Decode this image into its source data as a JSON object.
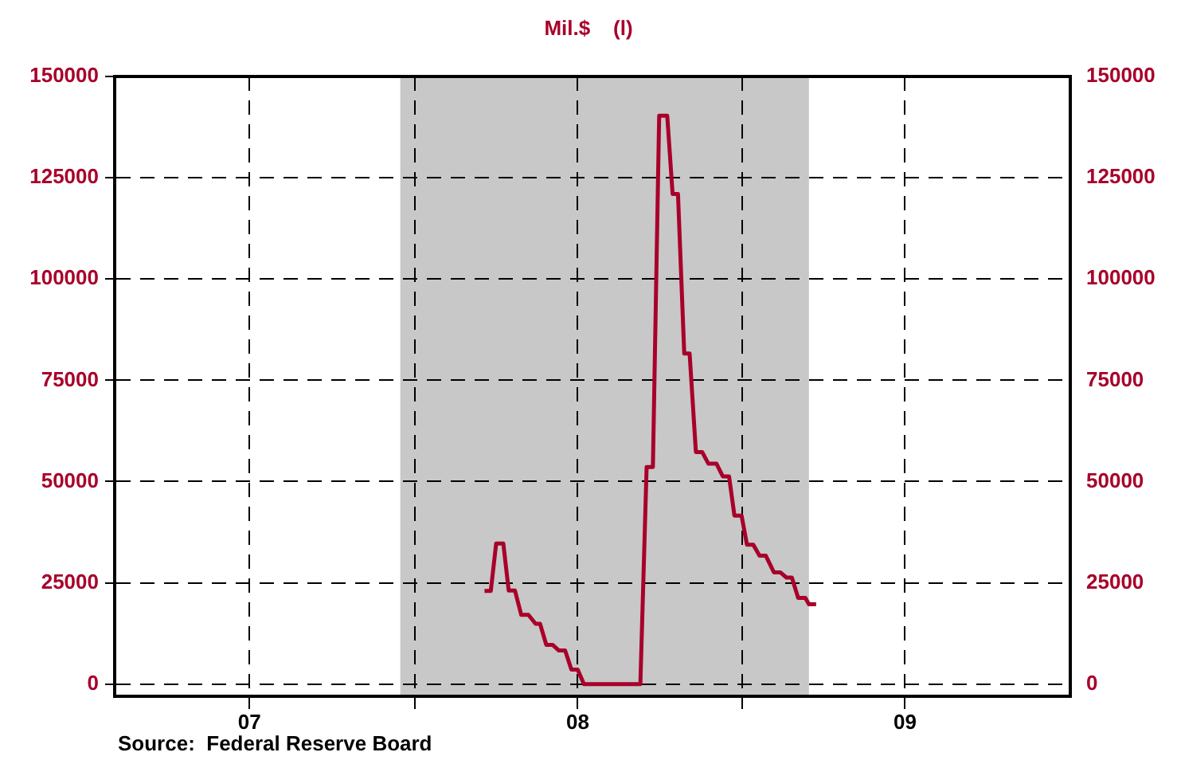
{
  "chart_data": {
    "type": "line",
    "ylabel": "Mil.$    (l)",
    "annotations": [
      "Source:  Federal Reserve Board"
    ],
    "x": [
      "2008-03-19",
      "2008-03-26",
      "2008-04-01",
      "2008-04-09",
      "2008-04-15",
      "2008-04-22",
      "2008-04-29",
      "2008-05-07",
      "2008-05-15",
      "2008-05-20",
      "2008-05-27",
      "2008-06-03",
      "2008-06-10",
      "2008-06-17",
      "2008-06-24",
      "2008-07-01",
      "2008-07-08",
      "2008-09-09",
      "2008-09-16",
      "2008-09-23",
      "2008-09-30",
      "2008-10-09",
      "2008-10-15",
      "2008-10-21",
      "2008-10-28",
      "2008-11-03",
      "2008-11-10",
      "2008-11-17",
      "2008-11-24",
      "2008-12-03",
      "2008-12-10",
      "2008-12-17",
      "2008-12-23",
      "2008-12-31",
      "2009-01-06",
      "2009-01-13",
      "2009-01-20",
      "2009-01-27",
      "2009-02-05",
      "2009-02-12",
      "2009-02-19",
      "2009-02-25",
      "2009-03-04",
      "2009-03-12",
      "2009-03-16",
      "2009-03-24"
    ],
    "series": [
      {
        "color": "#a8002a",
        "values": [
          23000,
          23000,
          34700,
          34700,
          23100,
          23100,
          17100,
          17100,
          14900,
          14900,
          9700,
          9700,
          8300,
          8300,
          3600,
          3600,
          0,
          0,
          53600,
          53600,
          140300,
          140300,
          121000,
          121000,
          81600,
          81600,
          57300,
          57300,
          54400,
          54400,
          51300,
          51300,
          41600,
          41600,
          34400,
          34400,
          31700,
          31700,
          27600,
          27600,
          26300,
          26300,
          21300,
          21300,
          19700,
          19700
        ]
      }
    ],
    "xlim": [
      "2007-02-01",
      "2010-01-01"
    ],
    "xticks": [
      {
        "value": "2007-07-01",
        "label": "07"
      },
      {
        "value": "2008-01-01",
        "label": null
      },
      {
        "value": "2008-07-01",
        "label": "08"
      },
      {
        "value": "2009-01-01",
        "label": null
      },
      {
        "value": "2009-07-01",
        "label": "09"
      }
    ],
    "ylim": [
      -3000,
      150000
    ],
    "yticks": [
      0,
      25000,
      50000,
      75000,
      100000,
      125000,
      150000
    ],
    "y2lim": [
      -3000,
      150000
    ],
    "y2ticks": [
      0,
      25000,
      50000,
      75000,
      100000,
      125000,
      150000
    ],
    "bands": [
      {
        "axis": "x",
        "from": "2007-12-16",
        "to": "2009-03-16",
        "color": "#c8c8c8"
      }
    ],
    "grid": true,
    "marker": "none",
    "line_style": "solid",
    "legend": false
  }
}
